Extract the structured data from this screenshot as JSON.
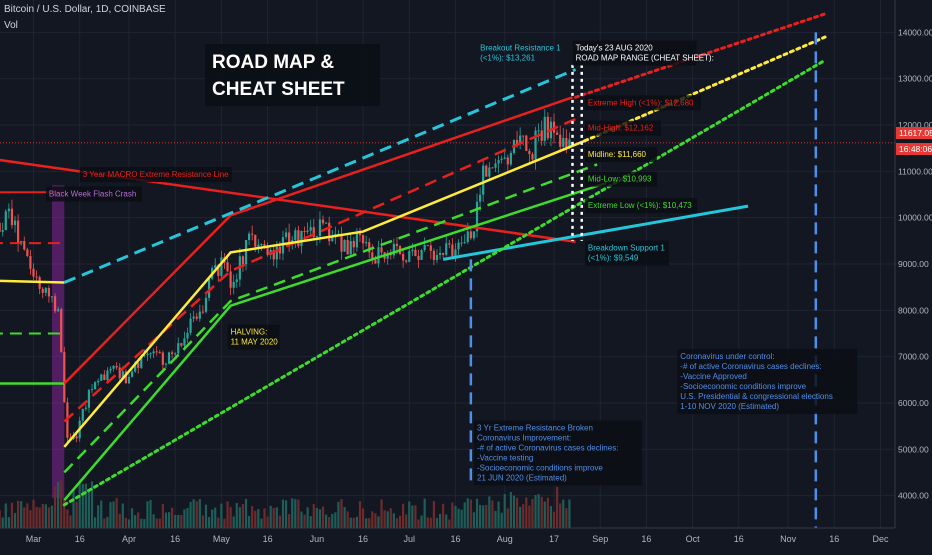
{
  "header": {
    "symbol": "Bitcoin / U.S. Dollar, 1D, COINBASE",
    "volume_label": "Vol"
  },
  "title": [
    "ROAD MAP &",
    "CHEAT SHEET"
  ],
  "price_tags": {
    "current_price": "11617.05",
    "countdown": "16:48:06"
  },
  "axis": {
    "y_min": 3300,
    "y_max": 14700,
    "y_ticks": [
      4000,
      5000,
      6000,
      7000,
      8000,
      9000,
      10000,
      11000,
      12000,
      13000,
      14000
    ],
    "y_tick_labels": [
      "4000.00",
      "5000.00",
      "6000.00",
      "7000.00",
      "8000.00",
      "9000.00",
      "10000.00",
      "11000.00",
      "12000.00",
      "13000.00",
      "14000.00"
    ],
    "x_ticks": [
      {
        "label": "Mar",
        "day": 0
      },
      {
        "label": "16",
        "day": 15
      },
      {
        "label": "Apr",
        "day": 31
      },
      {
        "label": "16",
        "day": 46
      },
      {
        "label": "May",
        "day": 61
      },
      {
        "label": "16",
        "day": 76
      },
      {
        "label": "Jun",
        "day": 92
      },
      {
        "label": "16",
        "day": 107
      },
      {
        "label": "Jul",
        "day": 122
      },
      {
        "label": "16",
        "day": 137
      },
      {
        "label": "Aug",
        "day": 153
      },
      {
        "label": "17",
        "day": 169
      },
      {
        "label": "Sep",
        "day": 184
      },
      {
        "label": "16",
        "day": 199
      },
      {
        "label": "Oct",
        "day": 214
      },
      {
        "label": "16",
        "day": 229
      },
      {
        "label": "Nov",
        "day": 245
      },
      {
        "label": "16",
        "day": 260
      },
      {
        "label": "Dec",
        "day": 275
      }
    ]
  },
  "lines": [
    {
      "name": "black-week-resistance",
      "color": "#e8201e",
      "dash": "solid",
      "width": 2,
      "points": [
        [
          -20,
          10550
        ],
        [
          10,
          10550
        ]
      ]
    },
    {
      "name": "macro-resistance-line",
      "color": "#e8201e",
      "dash": "solid",
      "width": 2.5,
      "points": [
        [
          -20,
          11330
        ],
        [
          176,
          9480
        ]
      ]
    },
    {
      "name": "pre-crash-red-dashed",
      "color": "#e8201e",
      "dash": "dashed",
      "width": 2,
      "points": [
        [
          -20,
          9450
        ],
        [
          10,
          9450
        ]
      ]
    },
    {
      "name": "pre-crash-yellow",
      "color": "#ffeb3b",
      "dash": "solid",
      "width": 2.5,
      "points": [
        [
          -20,
          8650
        ],
        [
          10,
          8600
        ]
      ]
    },
    {
      "name": "pre-crash-green-dashed",
      "color": "#3ddc2c",
      "dash": "dashed",
      "width": 2,
      "points": [
        [
          -20,
          7500
        ],
        [
          10,
          7500
        ]
      ]
    },
    {
      "name": "pre-crash-green",
      "color": "#3ddc2c",
      "dash": "solid",
      "width": 2.5,
      "points": [
        [
          -20,
          6420
        ],
        [
          10,
          6420
        ]
      ]
    },
    {
      "name": "extreme-high-channel",
      "color": "#e8201e",
      "dash": "solid",
      "width": 2.5,
      "points": [
        [
          10,
          6420
        ],
        [
          64,
          10050
        ],
        [
          175,
          12600
        ]
      ]
    },
    {
      "name": "mid-high-channel",
      "color": "#e8201e",
      "dash": "dashed",
      "width": 2.5,
      "points": [
        [
          10,
          5600
        ],
        [
          64,
          8850
        ],
        [
          177,
          12160
        ]
      ]
    },
    {
      "name": "midline-channel",
      "color": "#ffeb3b",
      "dash": "solid",
      "width": 2.5,
      "points": [
        [
          10,
          5050
        ],
        [
          64,
          9250
        ],
        [
          107,
          9700
        ],
        [
          179,
          11660
        ]
      ]
    },
    {
      "name": "mid-low-channel",
      "color": "#3ddc2c",
      "dash": "dashed",
      "width": 2.5,
      "points": [
        [
          10,
          4500
        ],
        [
          64,
          8200
        ],
        [
          183,
          11150
        ]
      ]
    },
    {
      "name": "extreme-low-channel",
      "color": "#3ddc2c",
      "dash": "solid",
      "width": 2.5,
      "points": [
        [
          10,
          3900
        ],
        [
          64,
          8100
        ],
        [
          186,
          10750
        ]
      ]
    },
    {
      "name": "breakdown-support-line",
      "color": "#26c6da",
      "dash": "solid",
      "width": 3,
      "points": [
        [
          133,
          9100
        ],
        [
          232,
          10250
        ]
      ]
    },
    {
      "name": "breakout-resistance-line",
      "color": "#26c6da",
      "dash": "dashed",
      "width": 3,
      "points": [
        [
          10,
          8600
        ],
        [
          176,
          13200
        ]
      ]
    },
    {
      "name": "dotted-red-projection",
      "color": "#e8201e",
      "dash": "dotted",
      "width": 3,
      "points": [
        [
          176,
          12600
        ],
        [
          257,
          14400
        ]
      ]
    },
    {
      "name": "dotted-yellow-projection",
      "color": "#ffeb3b",
      "dash": "dotted",
      "width": 3,
      "points": [
        [
          179,
          11660
        ],
        [
          257,
          13900
        ]
      ]
    },
    {
      "name": "dotted-green-projection",
      "color": "#3ddc2c",
      "dash": "dotted",
      "width": 3,
      "points": [
        [
          10,
          3800
        ],
        [
          257,
          13400
        ]
      ]
    }
  ],
  "vlines": [
    {
      "name": "jun-21-vline",
      "color": "#4f8fea",
      "dash": "dashed",
      "day": 142,
      "from": 9100,
      "to": 4300
    },
    {
      "name": "nov-10-vline",
      "color": "#4f8fea",
      "dash": "dashed",
      "day": 254,
      "from": 14000,
      "to": 3300
    },
    {
      "name": "today-vline-1",
      "color": "#ffffff",
      "dash": "dotted",
      "day": 175,
      "from": 13300,
      "to": 9500
    },
    {
      "name": "today-vline-2",
      "color": "#ffffff",
      "dash": "dotted",
      "day": 178,
      "from": 13300,
      "to": 9500
    }
  ],
  "annotations": [
    {
      "name": "annotation-breakout-resistance",
      "lines": [
        "Breakout Resistance 1",
        "(<1%): $13,261"
      ],
      "color": "#26c6da",
      "day": 145,
      "price": 13780,
      "bg": false
    },
    {
      "name": "annotation-today",
      "lines": [
        "Today's 23 AUG 2020",
        "ROAD MAP RANGE (CHEAT SHEET):"
      ],
      "color": "#ffffff",
      "day": 176,
      "price": 13780,
      "bg": true
    },
    {
      "name": "annotation-extreme-high",
      "lines": [
        "Extreme High (<1%): $12,680"
      ],
      "color": "#e8201e",
      "day": 180,
      "price": 12600,
      "bg": true
    },
    {
      "name": "annotation-mid-high",
      "lines": [
        "Mid-High: $12,162"
      ],
      "color": "#e8201e",
      "day": 180,
      "price": 12050,
      "bg": true
    },
    {
      "name": "annotation-midline",
      "lines": [
        "Midline: $11,660"
      ],
      "color": "#ffeb3b",
      "day": 180,
      "price": 11480,
      "bg": true
    },
    {
      "name": "annotation-mid-low",
      "lines": [
        "Mid-Low: $10,993"
      ],
      "color": "#3ddc2c",
      "day": 180,
      "price": 10950,
      "bg": true
    },
    {
      "name": "annotation-extreme-low",
      "lines": [
        "Extreme Low (<1%): $10,473"
      ],
      "color": "#3ddc2c",
      "day": 180,
      "price": 10380,
      "bg": true
    },
    {
      "name": "annotation-breakdown-support",
      "lines": [
        "Breakdown Support 1",
        "(<1%): $9,549"
      ],
      "color": "#26c6da",
      "day": 180,
      "price": 9460,
      "bg": true
    },
    {
      "name": "annotation-macro-resistance",
      "lines": [
        "3 Year MACRO Extreme Resistance Line"
      ],
      "color": "#e8201e",
      "day": 16,
      "price": 11050,
      "bg": true
    },
    {
      "name": "annotation-black-week",
      "lines": [
        "Black Week Flash Crash"
      ],
      "color": "#b56fd6",
      "day": 5,
      "price": 10630,
      "bg": true
    },
    {
      "name": "annotation-halving",
      "lines": [
        "HALVING:",
        "11 MAY 2020"
      ],
      "color": "#ffeb3b",
      "day": 64,
      "price": 7650,
      "bg": true
    },
    {
      "name": "annotation-june-improvement",
      "lines": [
        "3 Yr Extreme Resistance Broken",
        "Coronavirus Improvement:",
        "-# of active Coronavirus cases declines:",
        "-Vaccine testing",
        "-Socioeconomic conditions improve",
        "21 JUN 2020 (Estimated)"
      ],
      "color": "#4f8fea",
      "day": 144,
      "price": 5580,
      "bg": true
    },
    {
      "name": "annotation-november-control",
      "lines": [
        "Coronavirus under control:",
        "-# of active Coronavirus cases declines:",
        "-Vaccine Approved",
        "-Socioeconomic conditions improve",
        "U.S. Presidential & congressional elections",
        "1-10 NOV 2020 (Estimated)"
      ],
      "color": "#4f8fea",
      "day": 210,
      "price": 7120,
      "bg": true
    }
  ],
  "chart_data": {
    "type": "candlestick",
    "title": "Bitcoin / U.S. Dollar, 1D, COINBASE",
    "day_zero": "2020-03-01",
    "x": [
      -20,
      -16,
      -12,
      -8,
      -4,
      0,
      4,
      8,
      11,
      14,
      18,
      22,
      26,
      30,
      34,
      38,
      42,
      46,
      50,
      54,
      58,
      62,
      64,
      66,
      70,
      74,
      78,
      82,
      86,
      90,
      94,
      98,
      102,
      106,
      110,
      114,
      118,
      122,
      126,
      130,
      134,
      138,
      142,
      146,
      150,
      154,
      158,
      162,
      166,
      170,
      174
    ],
    "close": [
      9900,
      9600,
      9700,
      10100,
      9400,
      8700,
      8400,
      7900,
      5200,
      5300,
      6200,
      6500,
      6700,
      6500,
      6900,
      7200,
      6900,
      7100,
      7600,
      7800,
      8800,
      9000,
      8600,
      8800,
      9600,
      9400,
      9100,
      9700,
      9500,
      9700,
      9800,
      9500,
      9400,
      9500,
      9100,
      9300,
      9250,
      9100,
      9300,
      9200,
      9300,
      9300,
      9600,
      10900,
      11200,
      11400,
      11800,
      11500,
      12000,
      11700,
      11617
    ],
    "y_range": [
      3300,
      14700
    ],
    "current_price": 11617.05,
    "volume_series": "Vol"
  }
}
